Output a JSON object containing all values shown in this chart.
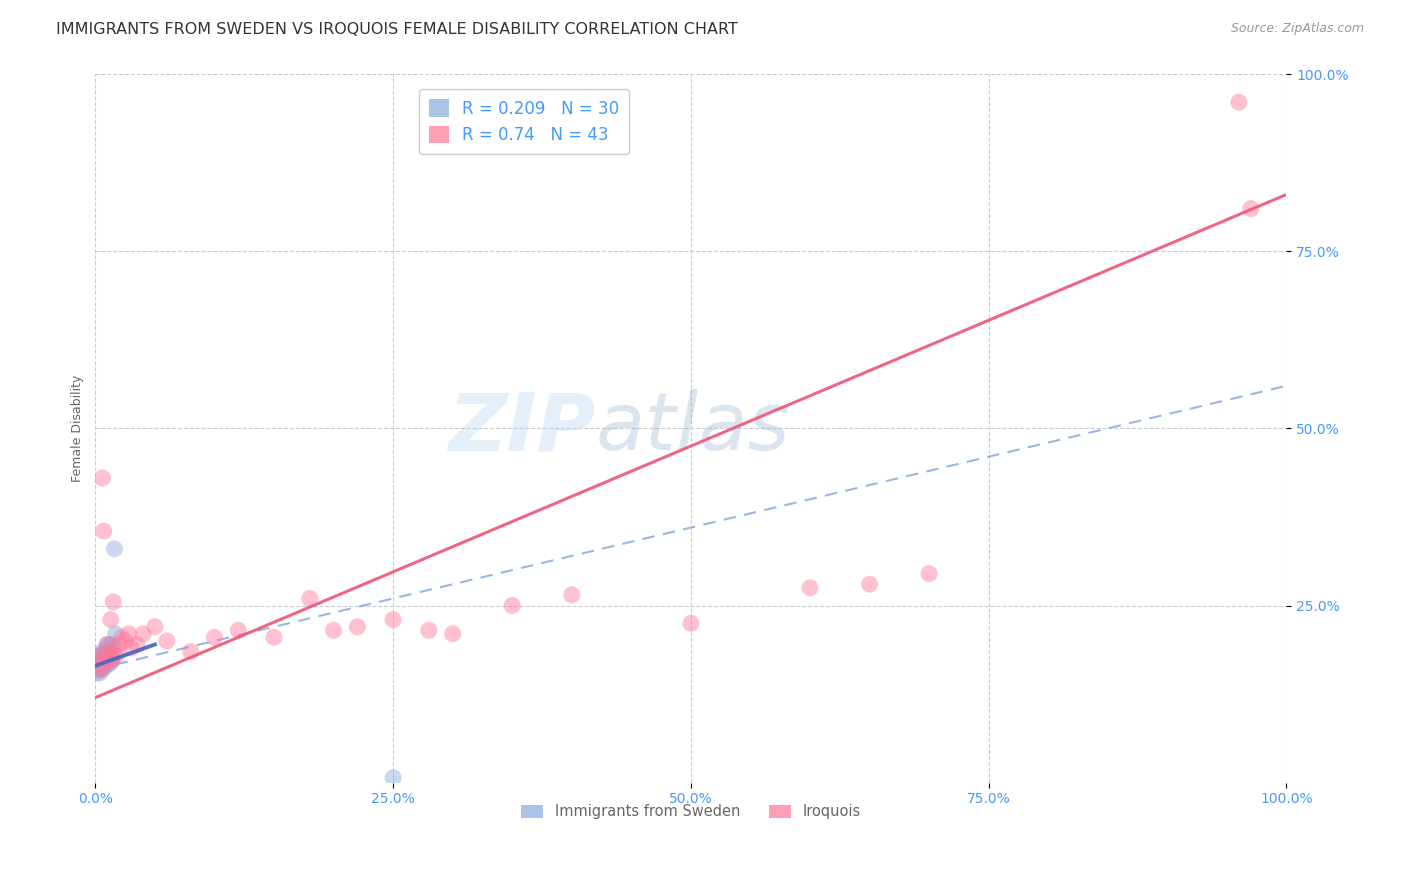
{
  "title": "IMMIGRANTS FROM SWEDEN VS IROQUOIS FEMALE DISABILITY CORRELATION CHART",
  "source": "Source: ZipAtlas.com",
  "ylabel": "Female Disability",
  "xlim": [
    0.0,
    1.0
  ],
  "ylim": [
    0.0,
    1.0
  ],
  "x_ticks": [
    0.0,
    0.25,
    0.5,
    0.75,
    1.0
  ],
  "x_tick_labels": [
    "0.0%",
    "25.0%",
    "50.0%",
    "75.0%",
    "100.0%"
  ],
  "y_ticks": [
    0.25,
    0.5,
    0.75,
    1.0
  ],
  "y_tick_labels": [
    "25.0%",
    "50.0%",
    "75.0%",
    "100.0%"
  ],
  "sweden_color": "#88AADD",
  "iroquois_color": "#FF7799",
  "sweden_R": 0.209,
  "sweden_N": 30,
  "iroquois_R": 0.74,
  "iroquois_N": 43,
  "sweden_line_color": "#4466BB",
  "iroquois_line_color": "#EE5577",
  "sweden_x": [
    0.001,
    0.002,
    0.002,
    0.003,
    0.003,
    0.004,
    0.004,
    0.005,
    0.005,
    0.005,
    0.006,
    0.006,
    0.007,
    0.007,
    0.008,
    0.008,
    0.009,
    0.009,
    0.01,
    0.01,
    0.011,
    0.011,
    0.012,
    0.013,
    0.013,
    0.014,
    0.015,
    0.016,
    0.017,
    0.25
  ],
  "sweden_y": [
    0.155,
    0.16,
    0.17,
    0.165,
    0.175,
    0.155,
    0.18,
    0.168,
    0.172,
    0.178,
    0.16,
    0.185,
    0.175,
    0.168,
    0.182,
    0.17,
    0.178,
    0.165,
    0.195,
    0.19,
    0.175,
    0.182,
    0.168,
    0.195,
    0.172,
    0.175,
    0.19,
    0.33,
    0.21,
    0.007
  ],
  "iroquois_x": [
    0.002,
    0.003,
    0.004,
    0.005,
    0.006,
    0.007,
    0.008,
    0.009,
    0.01,
    0.011,
    0.012,
    0.013,
    0.014,
    0.015,
    0.016,
    0.018,
    0.02,
    0.022,
    0.025,
    0.028,
    0.03,
    0.035,
    0.04,
    0.05,
    0.06,
    0.08,
    0.1,
    0.12,
    0.15,
    0.18,
    0.2,
    0.22,
    0.25,
    0.28,
    0.3,
    0.35,
    0.4,
    0.5,
    0.6,
    0.65,
    0.7,
    0.96,
    0.97
  ],
  "iroquois_y": [
    0.16,
    0.175,
    0.18,
    0.16,
    0.43,
    0.355,
    0.175,
    0.168,
    0.195,
    0.178,
    0.185,
    0.23,
    0.172,
    0.255,
    0.182,
    0.18,
    0.195,
    0.205,
    0.2,
    0.21,
    0.19,
    0.195,
    0.21,
    0.22,
    0.2,
    0.185,
    0.205,
    0.215,
    0.205,
    0.26,
    0.215,
    0.22,
    0.23,
    0.215,
    0.21,
    0.25,
    0.265,
    0.225,
    0.275,
    0.28,
    0.295,
    0.96,
    0.81
  ],
  "watermark_zip": "ZIP",
  "watermark_atlas": "atlas",
  "background_color": "#ffffff",
  "grid_color": "#cccccc",
  "title_fontsize": 11.5,
  "axis_label_fontsize": 9,
  "tick_fontsize": 10,
  "tick_color": "#4499FF",
  "legend_text_color": "#4499FF"
}
